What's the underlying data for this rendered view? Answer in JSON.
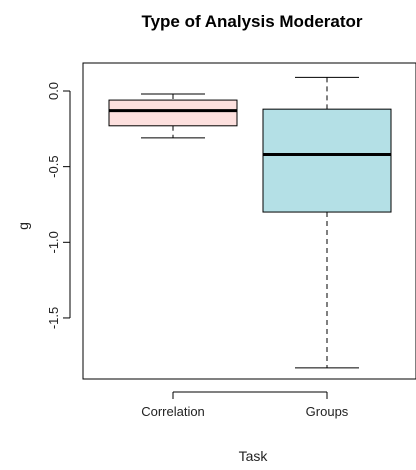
{
  "chart_data": {
    "type": "boxplot",
    "title": "Type of Analysis Moderator",
    "xlabel": "Task",
    "ylabel": "g",
    "ylim": [
      -1.9,
      0.15
    ],
    "yticks": [
      0.0,
      -0.5,
      -1.0,
      -1.5
    ],
    "ytick_labels": [
      "0.0",
      "-0.5",
      "-1.0",
      "-1.5"
    ],
    "categories": [
      "Correlation",
      "Groups"
    ],
    "boxes": [
      {
        "name": "Correlation",
        "whisker_low": -0.31,
        "q1": -0.23,
        "median": -0.13,
        "q3": -0.06,
        "whisker_high": -0.02,
        "fill": "#fde0de"
      },
      {
        "name": "Groups",
        "whisker_low": -1.83,
        "q1": -0.8,
        "median": -0.42,
        "q3": -0.12,
        "whisker_high": 0.09,
        "fill": "#b4e0e6"
      }
    ],
    "grid": false
  }
}
